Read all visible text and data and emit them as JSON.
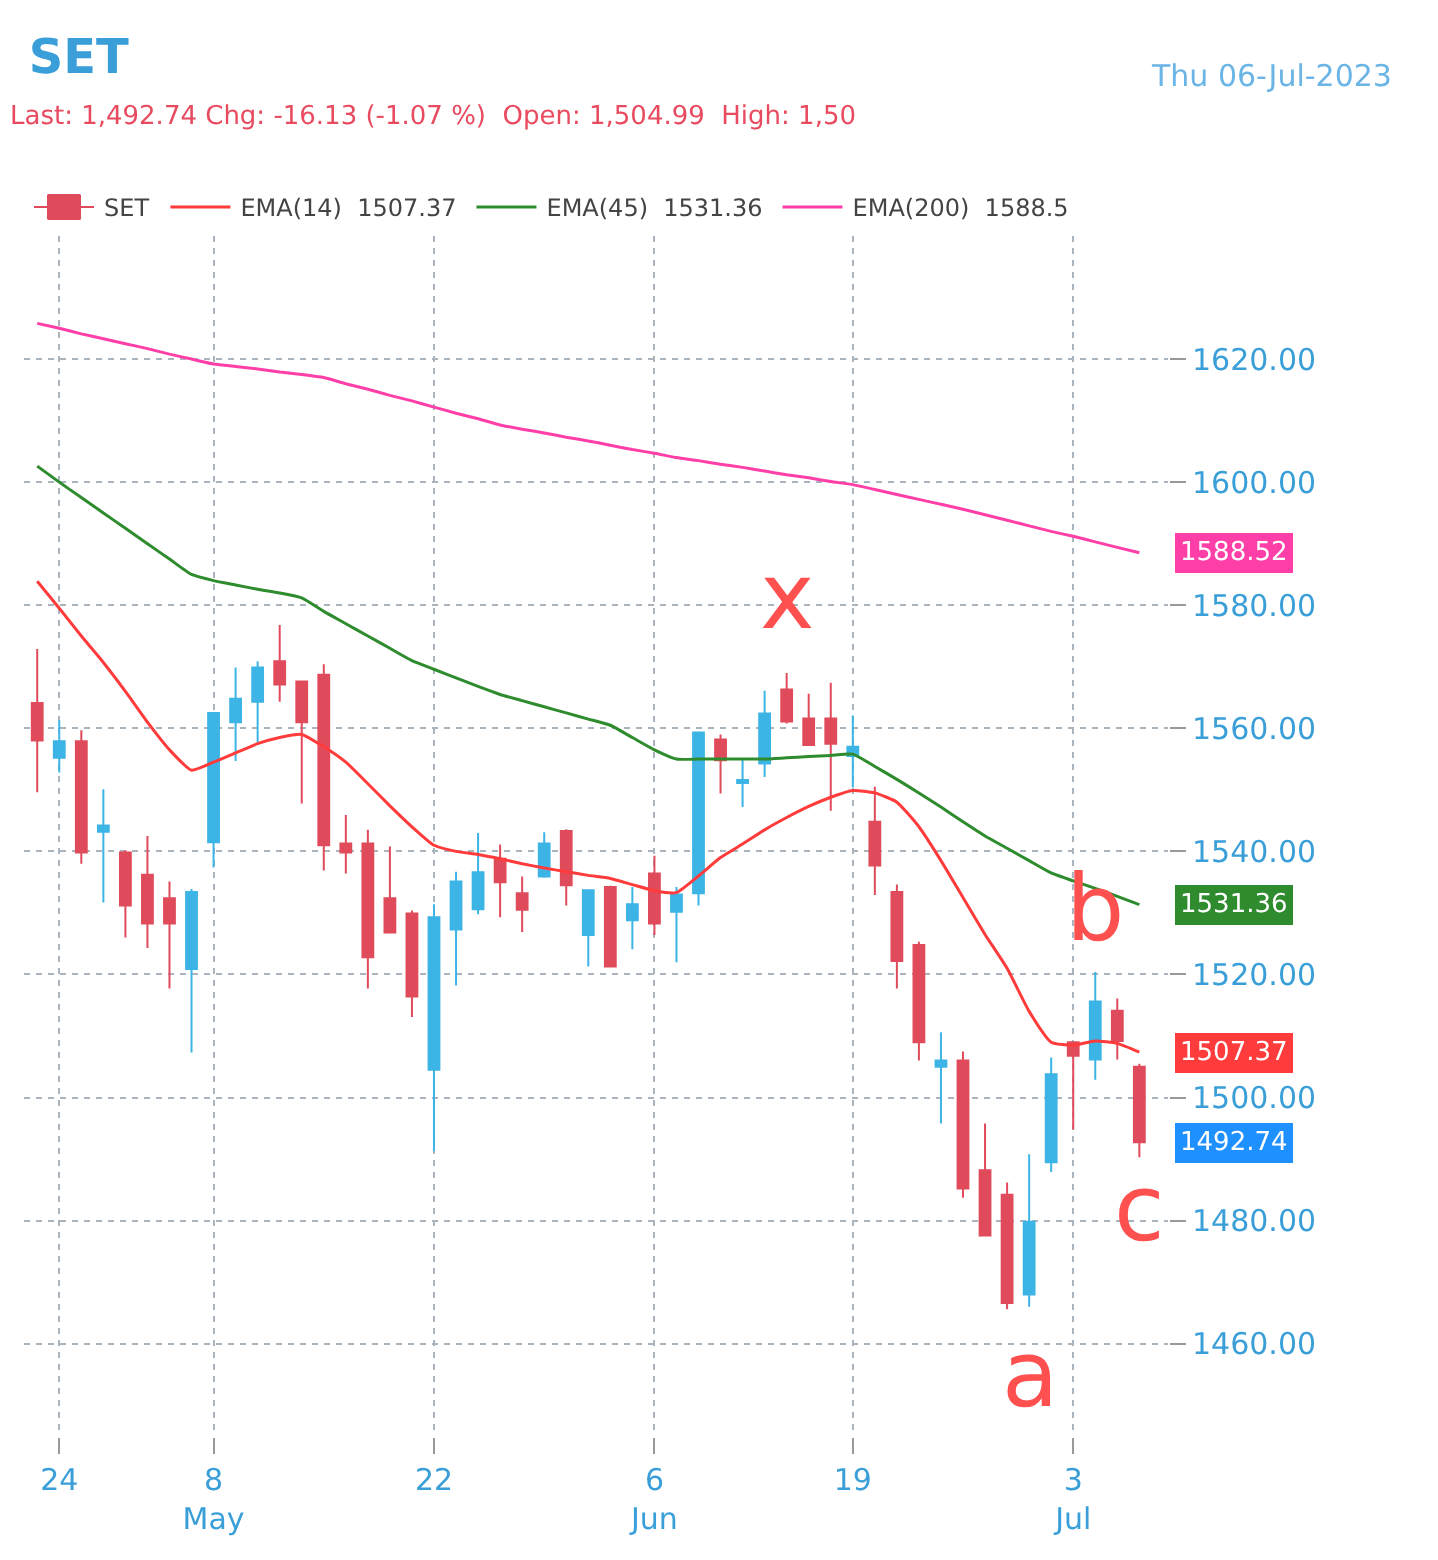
{
  "chart_data": {
    "type": "candlestick",
    "title": "SET",
    "subtitle": "Last: 1,492.74 Chg: -16.13 (-1.07 %)  Open: 1,504.99  High: 1,50",
    "annotations": [
      "Thu 06-Jul-2023",
      "x",
      "a",
      "b",
      "c"
    ],
    "categories": [
      null,
      "24",
      null,
      null,
      null,
      null,
      null,
      null,
      "8\nMay",
      null,
      null,
      null,
      null,
      null,
      null,
      null,
      null,
      null,
      "22",
      null,
      null,
      null,
      null,
      null,
      null,
      null,
      null,
      null,
      "6\nJun",
      null,
      null,
      null,
      null,
      null,
      null,
      null,
      null,
      "19",
      null,
      null,
      null,
      null,
      null,
      null,
      null,
      null,
      null,
      "3\nJul",
      null,
      null,
      null
    ],
    "series": [
      {
        "name": "SET",
        "color": "#1e90ff",
        "ohlc": [
          [
            1564.1,
            1572.9,
            1549.6,
            1558
          ],
          [
            1555.2,
            1561.3,
            1552.8,
            1557.9
          ],
          [
            1557.9,
            1559.7,
            1538,
            1539.8
          ],
          [
            1543.2,
            1550.1,
            1531.7,
            1544.2
          ],
          [
            1539.8,
            1540.2,
            1526,
            1531.2
          ],
          [
            1536.2,
            1542.5,
            1524.3,
            1528.3
          ],
          [
            1532.4,
            1535.1,
            1517.7,
            1528.3
          ],
          [
            1520.9,
            1533.9,
            1507.3,
            1533.4
          ],
          [
            1541.5,
            1562.6,
            1537.4,
            1562.5
          ],
          [
            1561,
            1569.9,
            1554.7,
            1564.8
          ],
          [
            1564.3,
            1570.9,
            1557.7,
            1569.9
          ],
          [
            1570.9,
            1576.8,
            1564.3,
            1567.1
          ],
          [
            1567.6,
            1567.6,
            1547.8,
            1561
          ],
          [
            1568.7,
            1570.4,
            1536.9,
            1541
          ],
          [
            1541.3,
            1545.9,
            1536.4,
            1539.8
          ],
          [
            1541.3,
            1543.5,
            1517.7,
            1522.8
          ],
          [
            1532.4,
            1540.8,
            1526.8,
            1526.8
          ],
          [
            1529.9,
            1530.4,
            1513.1,
            1516.4
          ],
          [
            1504.5,
            1531.4,
            1491.3,
            1529.3
          ],
          [
            1527.3,
            1536.7,
            1518.2,
            1535.1
          ],
          [
            1530.6,
            1543,
            1529.8,
            1536.6
          ],
          [
            1538.8,
            1541.1,
            1529.3,
            1535
          ],
          [
            1533.2,
            1535.9,
            1526.9,
            1530.5
          ],
          [
            1535.9,
            1543.1,
            1535.7,
            1541.3
          ],
          [
            1543.3,
            1543.6,
            1531.2,
            1534.5
          ],
          [
            1526.4,
            1533.7,
            1521.3,
            1533.7
          ],
          [
            1534.2,
            1534.4,
            1521.3,
            1521.3
          ],
          [
            1528.8,
            1534.2,
            1524.1,
            1531.4
          ],
          [
            1536.4,
            1539.3,
            1526.4,
            1528.3
          ],
          [
            1530.2,
            1534.2,
            1522,
            1533
          ],
          [
            1533.2,
            1559.5,
            1531.2,
            1559.3
          ],
          [
            1558.2,
            1559,
            1549.4,
            1554.8
          ],
          [
            1551.1,
            1555,
            1547.2,
            1551.6
          ],
          [
            1554.3,
            1566.1,
            1552.1,
            1562.4
          ],
          [
            1566.3,
            1569,
            1560.8,
            1561.1
          ],
          [
            1561.6,
            1565.6,
            1557.3,
            1557.3
          ],
          [
            1561.6,
            1567.4,
            1546.6,
            1557.5
          ],
          [
            1555.5,
            1562.1,
            1550.4,
            1557
          ],
          [
            1544.8,
            1550.5,
            1532.9,
            1537.7
          ],
          [
            1533.4,
            1534.6,
            1517.7,
            1522.2
          ],
          [
            1524.8,
            1525.3,
            1506,
            1509
          ],
          [
            1505,
            1510.6,
            1495.8,
            1506
          ],
          [
            1506,
            1507.5,
            1483.7,
            1485.2
          ],
          [
            1488.2,
            1495.8,
            1477.6,
            1477.6
          ],
          [
            1484.2,
            1486.2,
            1465.6,
            1466.6
          ],
          [
            1468,
            1490.8,
            1466,
            1479.8
          ],
          [
            1489.5,
            1506.5,
            1487.9,
            1503.8
          ],
          [
            1509,
            1509,
            1494.8,
            1506.8
          ],
          [
            1506.2,
            1520.4,
            1502.9,
            1515.6
          ],
          [
            1514.1,
            1516.1,
            1506.2,
            1509.2
          ],
          [
            1504.99,
            1505.5,
            1490.3,
            1492.74
          ]
        ],
        "colors": [
          "#e04b5b",
          "#3cb4e5",
          "#e04b5b",
          "#3cb4e5",
          "#e04b5b",
          "#e04b5b",
          "#e04b5b",
          "#3cb4e5",
          "#3cb4e5",
          "#3cb4e5",
          "#3cb4e5",
          "#e04b5b",
          "#e04b5b",
          "#e04b5b",
          "#e04b5b",
          "#e04b5b",
          "#e04b5b",
          "#e04b5b",
          "#3cb4e5",
          "#3cb4e5",
          "#3cb4e5",
          "#e04b5b",
          "#e04b5b",
          "#3cb4e5",
          "#e04b5b",
          "#3cb4e5",
          "#e04b5b",
          "#3cb4e5",
          "#e04b5b",
          "#3cb4e5",
          "#3cb4e5",
          "#e04b5b",
          "#3cb4e5",
          "#3cb4e5",
          "#e04b5b",
          "#e04b5b",
          "#e04b5b",
          "#3cb4e5",
          "#e04b5b",
          "#e04b5b",
          "#e04b5b",
          "#3cb4e5",
          "#e04b5b",
          "#e04b5b",
          "#e04b5b",
          "#3cb4e5",
          "#3cb4e5",
          "#e04b5b",
          "#3cb4e5",
          "#e04b5b",
          "#e04b5b"
        ],
        "value_labels": [
          null,
          null,
          null,
          null,
          null,
          null,
          null,
          null,
          null,
          null,
          null,
          null,
          null,
          null,
          null,
          null,
          null,
          null,
          null,
          null,
          null,
          null,
          null,
          null,
          null,
          null,
          null,
          null,
          null,
          null,
          null,
          null,
          null,
          null,
          null,
          null,
          null,
          null,
          null,
          null,
          null,
          null,
          null,
          null,
          null,
          null,
          null,
          null,
          null,
          null,
          "1492.74"
        ]
      },
      {
        "type": "line",
        "name": "EMA(14)  1507.37",
        "color": "#ff3b3b",
        "values": [
          1583.9,
          1579.5,
          1575,
          1570.7,
          1566,
          1561,
          1556.5,
          1553.2,
          1554.5,
          1556,
          1557.5,
          1558.5,
          1559,
          1557,
          1554.5,
          1551,
          1547.4,
          1544,
          1541,
          1540,
          1539.5,
          1538.8,
          1538,
          1537.3,
          1536.7,
          1536.1,
          1535.6,
          1534.6,
          1533.6,
          1533.3,
          1536,
          1539,
          1541.2,
          1543.5,
          1545.5,
          1547.3,
          1548.8,
          1549.9,
          1549.5,
          1548,
          1544,
          1538.5,
          1532.5,
          1526.5,
          1521,
          1514,
          1509,
          1508.5,
          1509.2,
          1508.8,
          1507.37
        ],
        "value_labels": [
          null,
          null,
          null,
          null,
          null,
          null,
          null,
          null,
          null,
          null,
          null,
          null,
          null,
          null,
          null,
          null,
          null,
          null,
          null,
          null,
          null,
          null,
          null,
          null,
          null,
          null,
          null,
          null,
          null,
          null,
          null,
          null,
          null,
          null,
          null,
          null,
          null,
          null,
          null,
          null,
          null,
          null,
          null,
          null,
          null,
          null,
          null,
          null,
          null,
          null,
          "1507.37"
        ]
      },
      {
        "type": "line",
        "name": "EMA(45)  1531.36",
        "color": "#2e8b2e",
        "values": [
          1602.6,
          1600,
          1597.5,
          1595,
          1592.5,
          1590,
          1587.5,
          1585,
          1584,
          1583.3,
          1582.6,
          1582,
          1581.2,
          1579,
          1577,
          1575,
          1573,
          1571,
          1569.6,
          1568.2,
          1566.8,
          1565.5,
          1564.5,
          1563.5,
          1562.5,
          1561.5,
          1560.5,
          1558.5,
          1556.5,
          1555,
          1555,
          1555,
          1555,
          1555,
          1555.2,
          1555.4,
          1555.6,
          1555.8,
          1553.8,
          1551.7,
          1549.5,
          1547.2,
          1544.8,
          1542.5,
          1540.5,
          1538.5,
          1536.5,
          1535.2,
          1534,
          1532.7,
          1531.36
        ],
        "value_labels": [
          null,
          null,
          null,
          null,
          null,
          null,
          null,
          null,
          null,
          null,
          null,
          null,
          null,
          null,
          null,
          null,
          null,
          null,
          null,
          null,
          null,
          null,
          null,
          null,
          null,
          null,
          null,
          null,
          null,
          null,
          null,
          null,
          null,
          null,
          null,
          null,
          null,
          null,
          null,
          null,
          null,
          null,
          null,
          null,
          null,
          null,
          null,
          null,
          null,
          null,
          "1531.36"
        ]
      },
      {
        "type": "line",
        "name": "EMA(200)  1588.5",
        "color": "#ff3fa8",
        "values": [
          1625.8,
          1625,
          1624.1,
          1623.3,
          1622.5,
          1621.7,
          1620.8,
          1620,
          1619.2,
          1618.8,
          1618.4,
          1617.9,
          1617.5,
          1617,
          1616,
          1615.1,
          1614.1,
          1613.2,
          1612.2,
          1611.2,
          1610.3,
          1609.3,
          1608.6,
          1608,
          1607.3,
          1606.7,
          1606,
          1605.3,
          1604.7,
          1604,
          1603.5,
          1602.9,
          1602.4,
          1601.8,
          1601.2,
          1600.7,
          1600.1,
          1599.6,
          1598.8,
          1598,
          1597.2,
          1596.4,
          1595.6,
          1594.7,
          1593.8,
          1592.9,
          1592,
          1591.2,
          1590.3,
          1589.4,
          1588.52
        ],
        "value_labels": [
          null,
          null,
          null,
          null,
          null,
          null,
          null,
          null,
          null,
          null,
          null,
          null,
          null,
          null,
          null,
          null,
          null,
          null,
          null,
          null,
          null,
          null,
          null,
          null,
          null,
          null,
          null,
          null,
          null,
          null,
          null,
          null,
          null,
          null,
          null,
          null,
          null,
          null,
          null,
          null,
          null,
          null,
          null,
          null,
          null,
          null,
          null,
          null,
          null,
          null,
          "1588.52"
        ]
      }
    ],
    "ylim": [
      1445,
      1640
    ],
    "yticks": [
      {
        "value": 1460,
        "label": "1460.00"
      },
      {
        "value": 1480,
        "label": "1480.00"
      },
      {
        "value": 1500,
        "label": "1500.00"
      },
      {
        "value": 1520,
        "label": "1520.00"
      },
      {
        "value": 1540,
        "label": "1540.00"
      },
      {
        "value": 1560,
        "label": "1560.00"
      },
      {
        "value": 1580,
        "label": "1580.00"
      },
      {
        "value": 1600,
        "label": "1600.00"
      },
      {
        "value": 1620,
        "label": "1620.00"
      }
    ],
    "grid": true,
    "legend": "top left"
  }
}
